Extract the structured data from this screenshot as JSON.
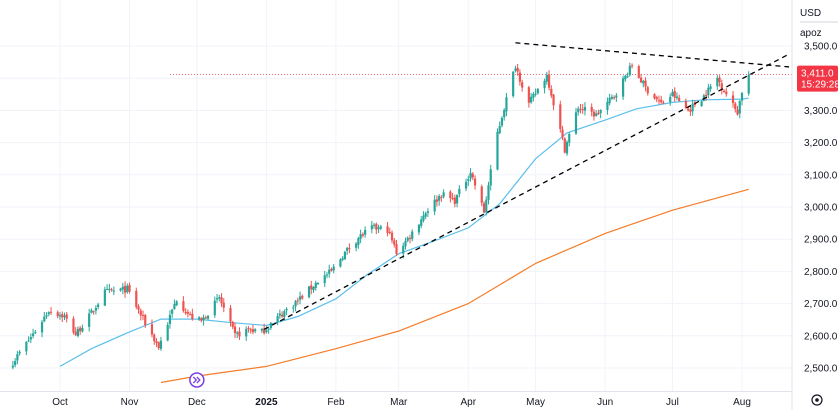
{
  "header": {
    "currency": "USD",
    "series_label": "apoz"
  },
  "price_badge": {
    "price": "3,411.0",
    "countdown": "15:29:28",
    "color": "#f23645"
  },
  "colors": {
    "up": "#26a69a",
    "down": "#ef5350",
    "ma_fast": "#5bc0eb",
    "ma_slow": "#f57c28",
    "trendline": "#000000",
    "marker": "#7b3fe4"
  },
  "icons": {
    "marker": "double-chevron-right-icon",
    "settings": "gear-icon"
  },
  "chart_data": {
    "type": "candlestick",
    "y_ticks": [
      {
        "value": 2500,
        "label": "2,500.0"
      },
      {
        "value": 2600,
        "label": "2,600.0"
      },
      {
        "value": 2700,
        "label": "2,700.0"
      },
      {
        "value": 2800,
        "label": "2,800.0"
      },
      {
        "value": 2900,
        "label": "2,900.0"
      },
      {
        "value": 3000,
        "label": "3,000.0"
      },
      {
        "value": 3100,
        "label": "3,100.0"
      },
      {
        "value": 3200,
        "label": "3,200.0"
      },
      {
        "value": 3300,
        "label": "3,300.0"
      },
      {
        "value": 3400,
        "label": "3,400.0"
      },
      {
        "value": 3500,
        "label": "3,500.0"
      }
    ],
    "x_ticks": [
      {
        "date": "2024-10-01",
        "label": "Oct",
        "bold": false
      },
      {
        "date": "2024-11-01",
        "label": "Nov",
        "bold": false
      },
      {
        "date": "2024-12-01",
        "label": "Dec",
        "bold": false
      },
      {
        "date": "2025-01-01",
        "label": "2025",
        "bold": true
      },
      {
        "date": "2025-02-01",
        "label": "Feb",
        "bold": false
      },
      {
        "date": "2025-03-01",
        "label": "Mar",
        "bold": false
      },
      {
        "date": "2025-04-01",
        "label": "Apr",
        "bold": false
      },
      {
        "date": "2025-05-01",
        "label": "May",
        "bold": false
      },
      {
        "date": "2025-06-01",
        "label": "Jun",
        "bold": false
      },
      {
        "date": "2025-07-01",
        "label": "Jul",
        "bold": false
      },
      {
        "date": "2025-08-01",
        "label": "Aug",
        "bold": false
      }
    ],
    "ylim": [
      2455,
      3540
    ],
    "xlim": [
      "2024-09-08",
      "2025-08-22"
    ],
    "close_path": [
      [
        "2024-09-10",
        2518
      ],
      [
        "2024-09-20",
        2615
      ],
      [
        "2024-09-26",
        2680
      ],
      [
        "2024-10-03",
        2660
      ],
      [
        "2024-10-08",
        2605
      ],
      [
        "2024-10-14",
        2660
      ],
      [
        "2024-10-21",
        2735
      ],
      [
        "2024-10-31",
        2745
      ],
      [
        "2024-11-06",
        2665
      ],
      [
        "2024-11-14",
        2565
      ],
      [
        "2024-11-22",
        2715
      ],
      [
        "2024-11-28",
        2660
      ],
      [
        "2024-12-03",
        2645
      ],
      [
        "2024-12-11",
        2718
      ],
      [
        "2024-12-18",
        2600
      ],
      [
        "2024-12-24",
        2620
      ],
      [
        "2024-12-30",
        2612
      ],
      [
        "2025-01-07",
        2663
      ],
      [
        "2025-01-16",
        2716
      ],
      [
        "2025-01-24",
        2770
      ],
      [
        "2025-01-30",
        2800
      ],
      [
        "2025-02-04",
        2850
      ],
      [
        "2025-02-11",
        2905
      ],
      [
        "2025-02-17",
        2935
      ],
      [
        "2025-02-24",
        2930
      ],
      [
        "2025-02-28",
        2860
      ],
      [
        "2025-03-06",
        2910
      ],
      [
        "2025-03-13",
        2985
      ],
      [
        "2025-03-20",
        3040
      ],
      [
        "2025-03-26",
        3020
      ],
      [
        "2025-04-02",
        3110
      ],
      [
        "2025-04-08",
        2985
      ],
      [
        "2025-04-14",
        3230
      ],
      [
        "2025-04-22",
        3440
      ],
      [
        "2025-04-28",
        3320
      ],
      [
        "2025-05-06",
        3410
      ],
      [
        "2025-05-14",
        3180
      ],
      [
        "2025-05-20",
        3310
      ],
      [
        "2025-05-28",
        3285
      ],
      [
        "2025-06-05",
        3345
      ],
      [
        "2025-06-13",
        3440
      ],
      [
        "2025-06-19",
        3370
      ],
      [
        "2025-06-26",
        3320
      ],
      [
        "2025-07-01",
        3350
      ],
      [
        "2025-07-08",
        3300
      ],
      [
        "2025-07-15",
        3345
      ],
      [
        "2025-07-21",
        3400
      ],
      [
        "2025-07-28",
        3315
      ],
      [
        "2025-07-30",
        3296
      ],
      [
        "2025-08-01",
        3360
      ],
      [
        "2025-08-04",
        3411
      ]
    ],
    "series": [
      {
        "kind": "moving_average",
        "color": "#5bc0eb",
        "points": [
          [
            "2024-10-01",
            2505
          ],
          [
            "2024-10-15",
            2560
          ],
          [
            "2024-11-01",
            2612
          ],
          [
            "2024-11-15",
            2652
          ],
          [
            "2024-12-01",
            2652
          ],
          [
            "2024-12-15",
            2642
          ],
          [
            "2025-01-01",
            2632
          ],
          [
            "2025-01-15",
            2660
          ],
          [
            "2025-02-01",
            2715
          ],
          [
            "2025-02-15",
            2790
          ],
          [
            "2025-03-01",
            2855
          ],
          [
            "2025-03-15",
            2890
          ],
          [
            "2025-04-01",
            2935
          ],
          [
            "2025-04-15",
            3010
          ],
          [
            "2025-05-01",
            3150
          ],
          [
            "2025-05-15",
            3230
          ],
          [
            "2025-06-01",
            3270
          ],
          [
            "2025-06-15",
            3305
          ],
          [
            "2025-07-01",
            3325
          ],
          [
            "2025-07-15",
            3333
          ],
          [
            "2025-08-01",
            3335
          ],
          [
            "2025-08-04",
            3338
          ]
        ]
      },
      {
        "kind": "moving_average",
        "color": "#f57c28",
        "points": [
          [
            "2024-11-15",
            2455
          ],
          [
            "2024-12-01",
            2475
          ],
          [
            "2025-01-01",
            2505
          ],
          [
            "2025-02-01",
            2560
          ],
          [
            "2025-03-01",
            2615
          ],
          [
            "2025-04-01",
            2700
          ],
          [
            "2025-05-01",
            2825
          ],
          [
            "2025-06-01",
            2918
          ],
          [
            "2025-07-01",
            2990
          ],
          [
            "2025-08-04",
            3055
          ]
        ]
      }
    ],
    "trendlines": [
      {
        "from": [
          "2024-12-31",
          2620
        ],
        "to": [
          "2025-08-22",
          3475
        ]
      },
      {
        "from": [
          "2025-04-22",
          3510
        ],
        "to": [
          "2025-08-22",
          3435
        ]
      }
    ],
    "price_line": 3411,
    "marker_date": "2024-12-01"
  }
}
